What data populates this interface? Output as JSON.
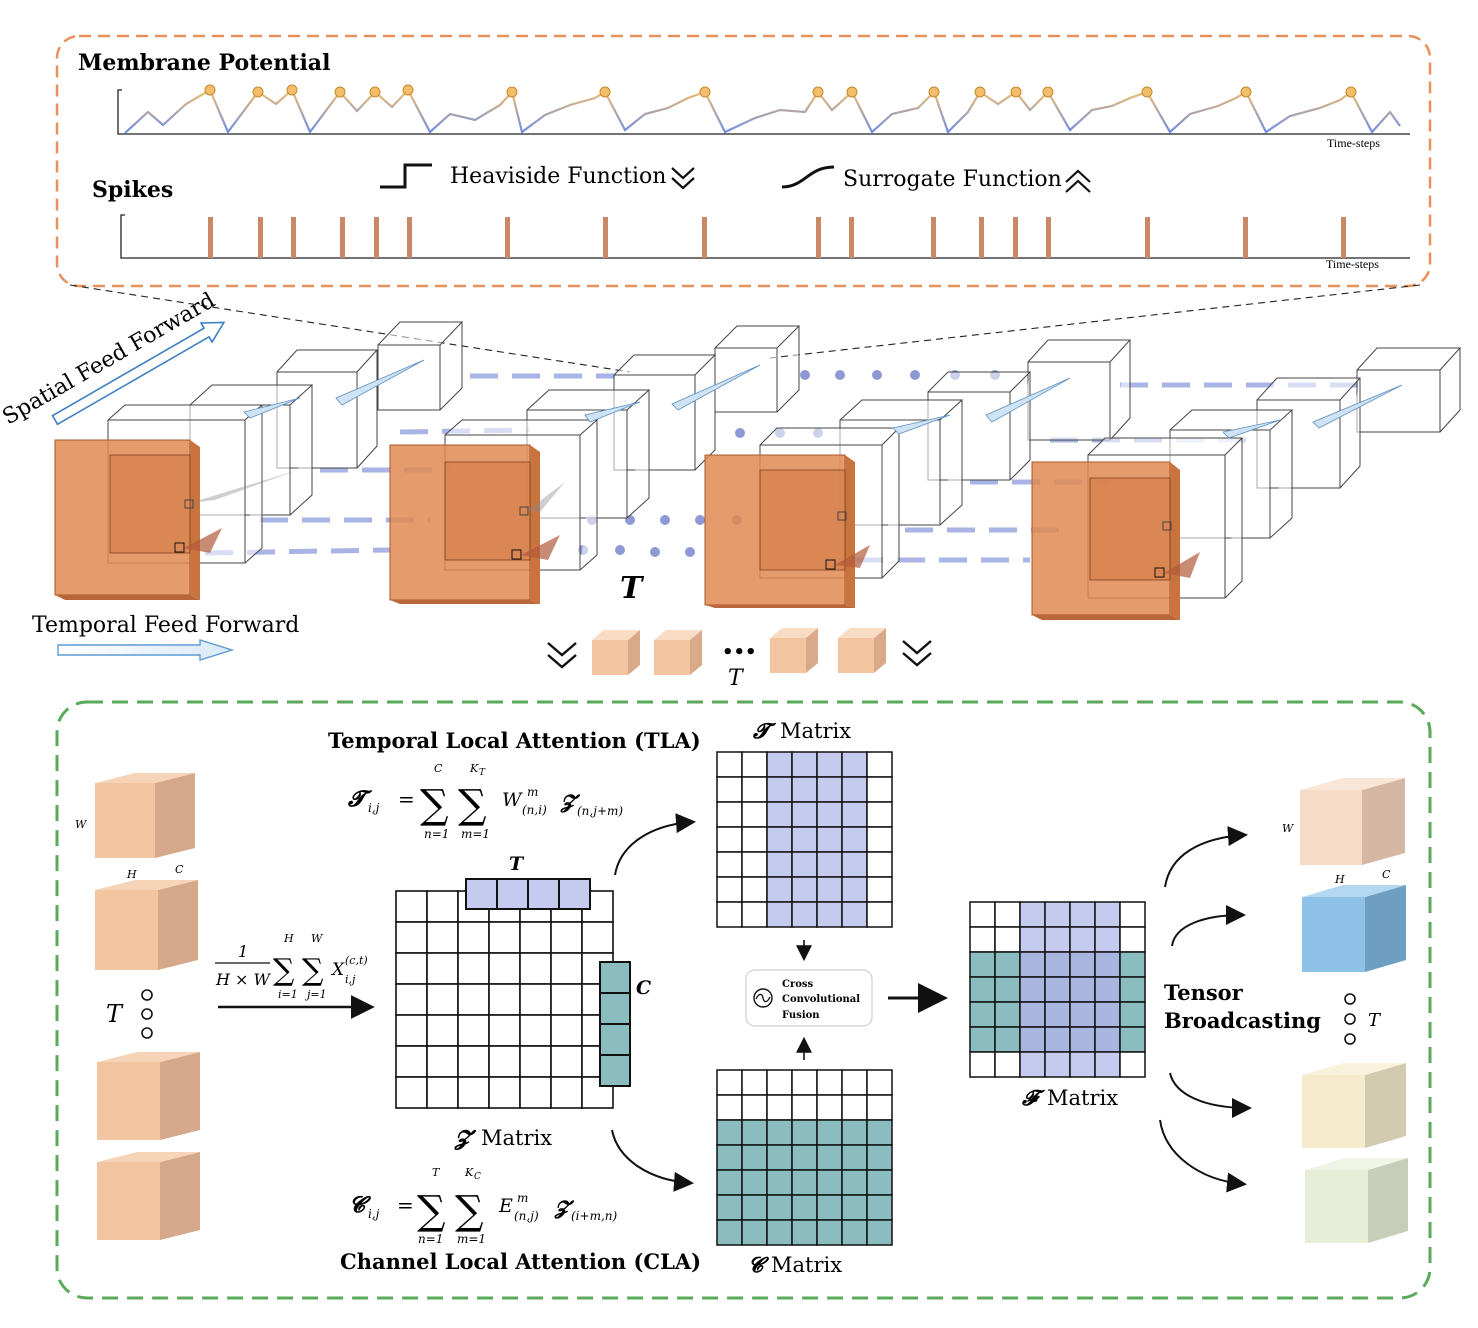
{
  "top_panel": {
    "membrane_title": "Membrane Potential",
    "spikes_title": "Spikes",
    "time_axis_label": "Time-steps",
    "heaviside_label": "Heaviside Function",
    "surrogate_label": "Surrogate Function",
    "colors": {
      "border": "#e8915a",
      "spike": "#c98866",
      "potential_low": "#7f95e0",
      "potential_high": "#f3bd6b"
    }
  },
  "feed_forward": {
    "spatial_label": "Spatial Feed Forward",
    "temporal_label": "Temporal Feed Forward",
    "time_symbol": "T",
    "ellipsis": "•••",
    "output_time_symbol": "T"
  },
  "bottom_panel": {
    "border_color": "#5aaa5a",
    "tla_title": "Temporal Local Attention (TLA)",
    "cla_title": "Channel Local Attention (CLA)",
    "t_formula": {
      "lhs": "𝓣",
      "lhs_sub": "i,j",
      "equals": "=",
      "sum1_top": "C",
      "sum1_bottom": "n=1",
      "sum2_top": "K",
      "sum2_top_sub": "T",
      "sum2_bottom": "m=1",
      "term": "W",
      "term_sup": "m",
      "term_sub": "(n,i)",
      "z_symbol": "𝓩",
      "z_sub": "(n,j+m)"
    },
    "c_formula": {
      "lhs": "𝓒",
      "lhs_sub": "i,j",
      "equals": "=",
      "sum1_top": "T",
      "sum1_bottom": "n=1",
      "sum2_top": "K",
      "sum2_top_sub": "C",
      "sum2_bottom": "m=1",
      "term": "E",
      "term_sup": "m",
      "term_sub": "(n,j)",
      "z_symbol": "𝓩",
      "z_sub": "(i+m,n)"
    },
    "pool_formula": {
      "numerator": "1",
      "denominator": "H × W",
      "sum1_top": "H",
      "sum1_bottom": "i=1",
      "sum2_top": "W",
      "sum2_bottom": "j=1",
      "term": "X",
      "term_sup": "(c,t)",
      "term_sub": "i,j"
    },
    "input_cube_labels": {
      "w": "W",
      "h": "H",
      "c": "C",
      "t": "T"
    },
    "z_matrix_label": "Matrix",
    "z_symbol": "𝓩",
    "z_top_label": "T",
    "z_side_label": "C",
    "t_matrix_label": "Matrix",
    "t_symbol": "𝓣",
    "c_matrix_label": "Matrix",
    "c_symbol": "𝓒",
    "f_matrix_label": "Matrix",
    "f_symbol": "𝓕",
    "fusion_line1": "Cross",
    "fusion_line2": "Convolutional",
    "fusion_line3": "Fusion",
    "tensor_line1": "Tensor",
    "tensor_line2": "Broadcasting",
    "output_labels": {
      "w": "W",
      "h": "H",
      "c": "C",
      "t": "T"
    },
    "colors": {
      "lavender": "#c5cbee",
      "teal": "#8bbcc0",
      "peach": "#f2c5a0"
    }
  }
}
